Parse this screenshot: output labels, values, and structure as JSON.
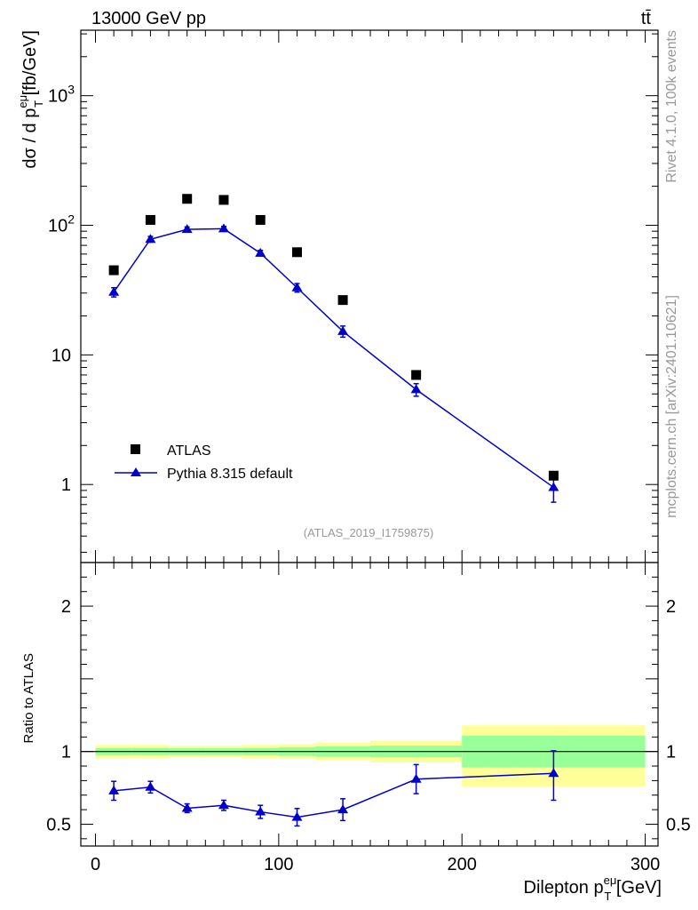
{
  "header": {
    "left": "13000 GeV pp",
    "right": "tt̄"
  },
  "side_labels": {
    "rivet": "Rivet 4.1.0,  100k events",
    "mcplots": "mcplots.cern.ch [arXiv:2401.10621]"
  },
  "watermark": "(ATLAS_2019_I1759875)",
  "colors": {
    "data": "#000000",
    "mc": "#0000cc",
    "band_inner": "#99ff99",
    "band_outer": "#ffff99"
  },
  "chart_data": [
    {
      "type": "scatter",
      "panel": "main",
      "ylabel": {
        "a": "dσ / d p",
        "sup": "eμ",
        "sub": "T",
        "b": " [fb/GeV]"
      },
      "yscale": "log",
      "ylim": [
        0.25,
        3200
      ],
      "yticks": [
        {
          "v": 1,
          "label": "1"
        },
        {
          "v": 10,
          "label": "10"
        },
        {
          "v": 100,
          "base": "10",
          "exp": "2"
        },
        {
          "v": 1000,
          "base": "10",
          "exp": "3"
        }
      ],
      "xlim": [
        -8,
        307
      ],
      "legend": {
        "position": "lower-left",
        "data": "ATLAS",
        "mc": "Pythia 8.315 default"
      },
      "series": [
        {
          "name": "ATLAS",
          "marker": "square",
          "x": [
            10,
            30,
            50,
            70,
            90,
            110,
            135,
            175,
            250
          ],
          "y": [
            45,
            110,
            160,
            157,
            110,
            62,
            26.5,
            7.0,
            1.17
          ]
        },
        {
          "name": "Pythia 8.315 default",
          "marker": "triangle",
          "x": [
            10,
            30,
            50,
            70,
            90,
            110,
            135,
            175,
            250
          ],
          "y": [
            30.5,
            78,
            93,
            94,
            61,
            33,
            15.2,
            5.4,
            0.95
          ],
          "yerr_low": [
            2.5,
            4,
            4,
            4,
            3,
            2.5,
            1.5,
            0.6,
            0.22
          ],
          "yerr_high": [
            2.5,
            4,
            4,
            4,
            3,
            2.5,
            1.5,
            0.6,
            0.22
          ]
        }
      ]
    },
    {
      "type": "ratio",
      "panel": "ratio",
      "ylabel": "Ratio to ATLAS",
      "ylim": [
        0.35,
        2.3
      ],
      "yticks": [
        {
          "v": 0.5,
          "label": "0.5"
        },
        {
          "v": 1,
          "label": "1"
        },
        {
          "v": 2,
          "label": "2"
        }
      ],
      "xlim": [
        -8,
        307
      ],
      "xticks": [
        {
          "v": 0,
          "label": "0"
        },
        {
          "v": 100,
          "label": "100"
        },
        {
          "v": 200,
          "label": "200"
        },
        {
          "v": 300,
          "label": "300"
        }
      ],
      "xlabel": {
        "a": "Dilepton p",
        "sup": "eμ",
        "sub": "T",
        "b": " [GeV]"
      },
      "bands": [
        {
          "x0": 0,
          "x1": 20,
          "inner": [
            0.975,
            1.025
          ],
          "outer": [
            0.955,
            1.045
          ]
        },
        {
          "x0": 20,
          "x1": 40,
          "inner": [
            0.975,
            1.025
          ],
          "outer": [
            0.955,
            1.045
          ]
        },
        {
          "x0": 40,
          "x1": 60,
          "inner": [
            0.978,
            1.022
          ],
          "outer": [
            0.96,
            1.04
          ]
        },
        {
          "x0": 60,
          "x1": 80,
          "inner": [
            0.978,
            1.022
          ],
          "outer": [
            0.96,
            1.04
          ]
        },
        {
          "x0": 80,
          "x1": 100,
          "inner": [
            0.975,
            1.025
          ],
          "outer": [
            0.955,
            1.045
          ]
        },
        {
          "x0": 100,
          "x1": 120,
          "inner": [
            0.97,
            1.03
          ],
          "outer": [
            0.95,
            1.05
          ]
        },
        {
          "x0": 120,
          "x1": 150,
          "inner": [
            0.965,
            1.035
          ],
          "outer": [
            0.94,
            1.06
          ]
        },
        {
          "x0": 150,
          "x1": 200,
          "inner": [
            0.96,
            1.04
          ],
          "outer": [
            0.925,
            1.075
          ]
        },
        {
          "x0": 200,
          "x1": 300,
          "inner": [
            0.89,
            1.11
          ],
          "outer": [
            0.76,
            1.18
          ]
        }
      ],
      "series": [
        {
          "name": "Pythia 8.315 default / ATLAS",
          "x": [
            10,
            30,
            50,
            70,
            90,
            110,
            135,
            175,
            250
          ],
          "y": [
            0.73,
            0.755,
            0.61,
            0.63,
            0.585,
            0.548,
            0.6,
            0.81,
            0.85
          ],
          "yerr_low": [
            0.065,
            0.04,
            0.03,
            0.035,
            0.045,
            0.06,
            0.075,
            0.1,
            0.185
          ],
          "yerr_high": [
            0.065,
            0.04,
            0.03,
            0.035,
            0.045,
            0.06,
            0.075,
            0.1,
            0.155
          ]
        }
      ]
    }
  ]
}
